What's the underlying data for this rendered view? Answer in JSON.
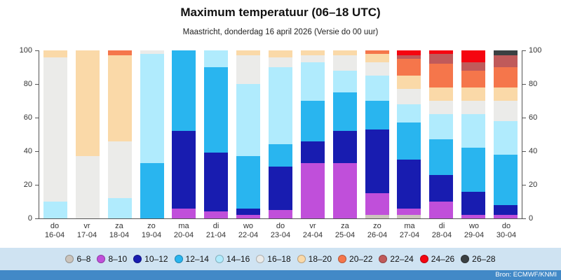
{
  "chart_data": {
    "type": "bar",
    "stacked": true,
    "title": "Maximum temperatuur (06–18 UTC)",
    "subtitle": "Maastricht, donderdag 16 april 2026 (Versie do 00 uur)",
    "source": "Bron: ECMWF/KNMI",
    "ylim": [
      0,
      100
    ],
    "yticks": [
      0,
      20,
      40,
      60,
      80,
      100
    ],
    "legend_position": "bottom",
    "grid": false,
    "bins": [
      {
        "label": "6–8",
        "color": "#cbc4bc"
      },
      {
        "label": "8–10",
        "color": "#c04fda"
      },
      {
        "label": "10–12",
        "color": "#181cb0"
      },
      {
        "label": "12–14",
        "color": "#29b5ef"
      },
      {
        "label": "14–16",
        "color": "#b0ebfd"
      },
      {
        "label": "16–18",
        "color": "#ebebe9"
      },
      {
        "label": "18–20",
        "color": "#fad9a8"
      },
      {
        "label": "20–22",
        "color": "#f5764b"
      },
      {
        "label": "22–24",
        "color": "#c05a5a"
      },
      {
        "label": "24–26",
        "color": "#f50510"
      },
      {
        "label": "26–28",
        "color": "#3a4042"
      }
    ],
    "categories": [
      {
        "day": "do",
        "date": "16-04"
      },
      {
        "day": "vr",
        "date": "17-04"
      },
      {
        "day": "za",
        "date": "18-04"
      },
      {
        "day": "zo",
        "date": "19-04"
      },
      {
        "day": "ma",
        "date": "20-04"
      },
      {
        "day": "di",
        "date": "21-04"
      },
      {
        "day": "wo",
        "date": "22-04"
      },
      {
        "day": "do",
        "date": "23-04"
      },
      {
        "day": "vr",
        "date": "24-04"
      },
      {
        "day": "za",
        "date": "25-04"
      },
      {
        "day": "zo",
        "date": "26-04"
      },
      {
        "day": "ma",
        "date": "27-04"
      },
      {
        "day": "di",
        "date": "28-04"
      },
      {
        "day": "wo",
        "date": "29-04"
      },
      {
        "day": "do",
        "date": "30-04"
      }
    ],
    "bars": [
      [
        0,
        0,
        0,
        0,
        10,
        86,
        4,
        0,
        0,
        0,
        0
      ],
      [
        0,
        0,
        0,
        0,
        0,
        37,
        63,
        0,
        0,
        0,
        0
      ],
      [
        0,
        0,
        0,
        0,
        12,
        34,
        51,
        3,
        0,
        0,
        0
      ],
      [
        0,
        0,
        0,
        33,
        65,
        2,
        0,
        0,
        0,
        0,
        0
      ],
      [
        0,
        6,
        46,
        48,
        0,
        0,
        0,
        0,
        0,
        0,
        0
      ],
      [
        0,
        4,
        35,
        51,
        10,
        0,
        0,
        0,
        0,
        0,
        0
      ],
      [
        0,
        2,
        4,
        31,
        43,
        17,
        3,
        0,
        0,
        0,
        0
      ],
      [
        0,
        5,
        26,
        13,
        46,
        6,
        4,
        0,
        0,
        0,
        0
      ],
      [
        0,
        33,
        13,
        24,
        23,
        4,
        3,
        0,
        0,
        0,
        0
      ],
      [
        0,
        33,
        19,
        23,
        13,
        9,
        3,
        0,
        0,
        0,
        0
      ],
      [
        2,
        13,
        38,
        17,
        15,
        8,
        5,
        2,
        0,
        0,
        0
      ],
      [
        2,
        4,
        29,
        22,
        11,
        9,
        8,
        10,
        2,
        3,
        0
      ],
      [
        0,
        10,
        16,
        21,
        15,
        8,
        8,
        14,
        6,
        2,
        0
      ],
      [
        0,
        2,
        14,
        26,
        20,
        8,
        8,
        10,
        5,
        7,
        0
      ],
      [
        0,
        2,
        6,
        30,
        20,
        12,
        8,
        12,
        7,
        0,
        3
      ]
    ]
  }
}
